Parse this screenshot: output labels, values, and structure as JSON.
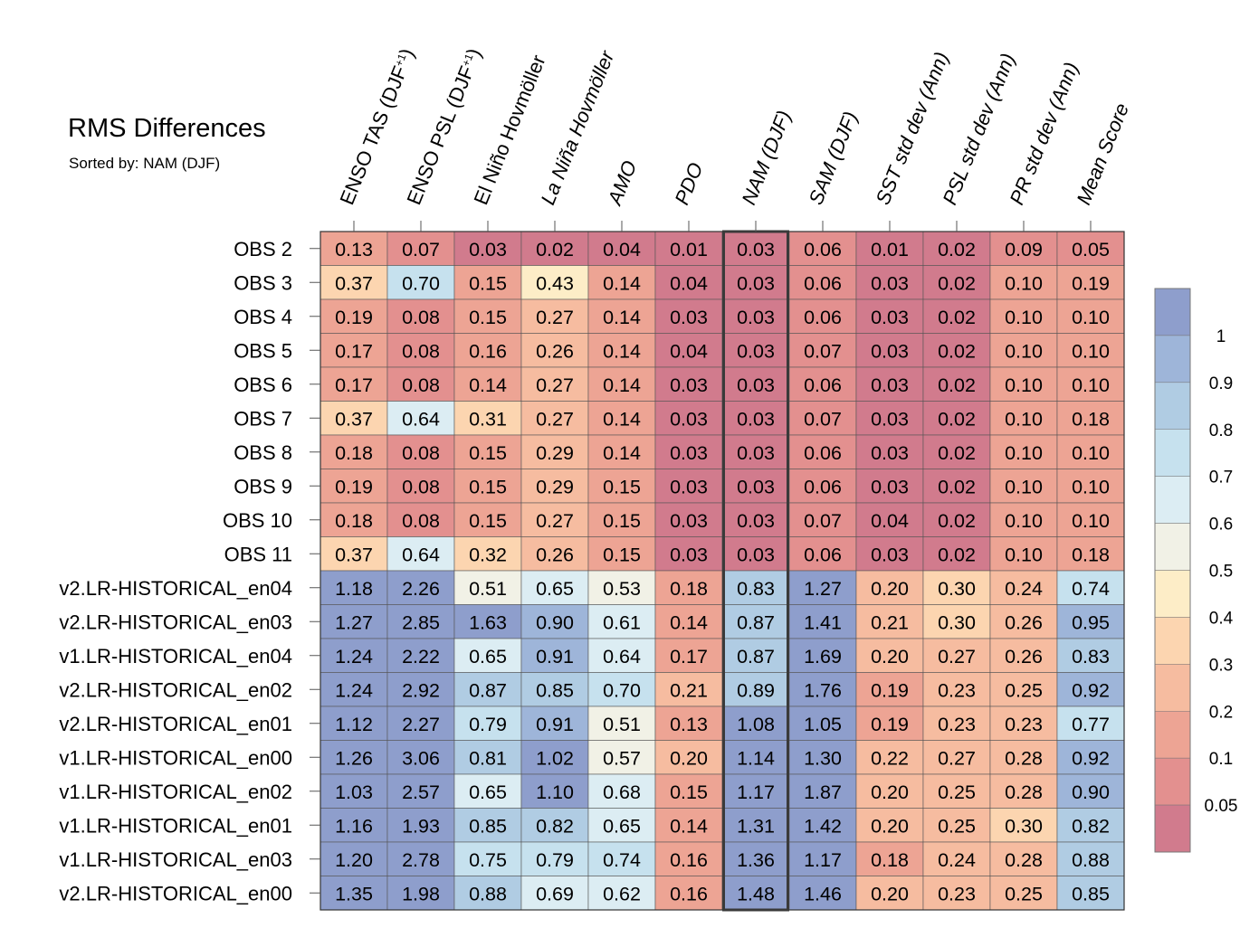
{
  "chart_data": {
    "type": "heatmap",
    "title": "RMS Differences",
    "subtitle": "Sorted by: NAM (DJF)",
    "columns": [
      "ENSO TAS (DJF",
      "ENSO PSL (DJF",
      "El Niño Hovmöller",
      "La Niña Hovmöller",
      "AMO",
      "PDO",
      "NAM (DJF)",
      "SAM (DJF)",
      "SST std dev (Ann)",
      "PSL std dev (Ann)",
      "PR std dev (Ann)",
      "Mean Score"
    ],
    "column_superscripts": [
      "+1",
      "+1",
      "",
      "",
      "",
      "",
      "",
      "",
      "",
      "",
      "",
      ""
    ],
    "italic_columns": [
      false,
      false,
      false,
      true,
      true,
      true,
      true,
      true,
      true,
      true,
      true,
      true
    ],
    "sorted_by_column": 6,
    "rows": [
      "OBS 2",
      "OBS 3",
      "OBS 4",
      "OBS 5",
      "OBS 6",
      "OBS 7",
      "OBS 8",
      "OBS 9",
      "OBS 10",
      "OBS 11",
      "v2.LR-HISTORICAL_en04",
      "v2.LR-HISTORICAL_en03",
      "v1.LR-HISTORICAL_en04",
      "v2.LR-HISTORICAL_en02",
      "v2.LR-HISTORICAL_en01",
      "v1.LR-HISTORICAL_en00",
      "v1.LR-HISTORICAL_en02",
      "v1.LR-HISTORICAL_en01",
      "v1.LR-HISTORICAL_en03",
      "v2.LR-HISTORICAL_en00"
    ],
    "values": [
      [
        "0.13",
        "0.07",
        "0.03",
        "0.02",
        "0.04",
        "0.01",
        "0.03",
        "0.06",
        "0.01",
        "0.02",
        "0.09",
        "0.05"
      ],
      [
        "0.37",
        "0.70",
        "0.15",
        "0.43",
        "0.14",
        "0.04",
        "0.03",
        "0.06",
        "0.03",
        "0.02",
        "0.10",
        "0.19"
      ],
      [
        "0.19",
        "0.08",
        "0.15",
        "0.27",
        "0.14",
        "0.03",
        "0.03",
        "0.06",
        "0.03",
        "0.02",
        "0.10",
        "0.10"
      ],
      [
        "0.17",
        "0.08",
        "0.16",
        "0.26",
        "0.14",
        "0.04",
        "0.03",
        "0.07",
        "0.03",
        "0.02",
        "0.10",
        "0.10"
      ],
      [
        "0.17",
        "0.08",
        "0.14",
        "0.27",
        "0.14",
        "0.03",
        "0.03",
        "0.06",
        "0.03",
        "0.02",
        "0.10",
        "0.10"
      ],
      [
        "0.37",
        "0.64",
        "0.31",
        "0.27",
        "0.14",
        "0.03",
        "0.03",
        "0.07",
        "0.03",
        "0.02",
        "0.10",
        "0.18"
      ],
      [
        "0.18",
        "0.08",
        "0.15",
        "0.29",
        "0.14",
        "0.03",
        "0.03",
        "0.06",
        "0.03",
        "0.02",
        "0.10",
        "0.10"
      ],
      [
        "0.19",
        "0.08",
        "0.15",
        "0.29",
        "0.15",
        "0.03",
        "0.03",
        "0.06",
        "0.03",
        "0.02",
        "0.10",
        "0.10"
      ],
      [
        "0.18",
        "0.08",
        "0.15",
        "0.27",
        "0.15",
        "0.03",
        "0.03",
        "0.07",
        "0.04",
        "0.02",
        "0.10",
        "0.10"
      ],
      [
        "0.37",
        "0.64",
        "0.32",
        "0.26",
        "0.15",
        "0.03",
        "0.03",
        "0.06",
        "0.03",
        "0.02",
        "0.10",
        "0.18"
      ],
      [
        "1.18",
        "2.26",
        "0.51",
        "0.65",
        "0.53",
        "0.18",
        "0.83",
        "1.27",
        "0.20",
        "0.30",
        "0.24",
        "0.74"
      ],
      [
        "1.27",
        "2.85",
        "1.63",
        "0.90",
        "0.61",
        "0.14",
        "0.87",
        "1.41",
        "0.21",
        "0.30",
        "0.26",
        "0.95"
      ],
      [
        "1.24",
        "2.22",
        "0.65",
        "0.91",
        "0.64",
        "0.17",
        "0.87",
        "1.69",
        "0.20",
        "0.27",
        "0.26",
        "0.83"
      ],
      [
        "1.24",
        "2.92",
        "0.87",
        "0.85",
        "0.70",
        "0.21",
        "0.89",
        "1.76",
        "0.19",
        "0.23",
        "0.25",
        "0.92"
      ],
      [
        "1.12",
        "2.27",
        "0.79",
        "0.91",
        "0.51",
        "0.13",
        "1.08",
        "1.05",
        "0.19",
        "0.23",
        "0.23",
        "0.77"
      ],
      [
        "1.26",
        "3.06",
        "0.81",
        "1.02",
        "0.57",
        "0.20",
        "1.14",
        "1.30",
        "0.22",
        "0.27",
        "0.28",
        "0.92"
      ],
      [
        "1.03",
        "2.57",
        "0.65",
        "1.10",
        "0.68",
        "0.15",
        "1.17",
        "1.87",
        "0.20",
        "0.25",
        "0.28",
        "0.90"
      ],
      [
        "1.16",
        "1.93",
        "0.85",
        "0.82",
        "0.65",
        "0.14",
        "1.31",
        "1.42",
        "0.20",
        "0.25",
        "0.30",
        "0.82"
      ],
      [
        "1.20",
        "2.78",
        "0.75",
        "0.79",
        "0.74",
        "0.16",
        "1.36",
        "1.17",
        "0.18",
        "0.24",
        "0.28",
        "0.88"
      ],
      [
        "1.35",
        "1.98",
        "0.88",
        "0.69",
        "0.62",
        "0.16",
        "1.48",
        "1.46",
        "0.20",
        "0.23",
        "0.25",
        "0.85"
      ]
    ],
    "colorbar": {
      "labels": [
        "1",
        "0.9",
        "0.8",
        "0.7",
        "0.6",
        "0.5",
        "0.4",
        "0.3",
        "0.2",
        "0.1",
        "0.05"
      ],
      "bounds": [
        0.05,
        0.1,
        0.2,
        0.3,
        0.4,
        0.5,
        0.6,
        0.7,
        0.8,
        0.9,
        1
      ],
      "colors": [
        "#d17b8d",
        "#e3908f",
        "#eda494",
        "#f6bca0",
        "#fcd5b0",
        "#fdedc7",
        "#f1f1e6",
        "#dcedf3",
        "#c6e1ee",
        "#b0cce3",
        "#9eb5d9",
        "#8e9ecc"
      ]
    },
    "legend_placement": "right"
  }
}
